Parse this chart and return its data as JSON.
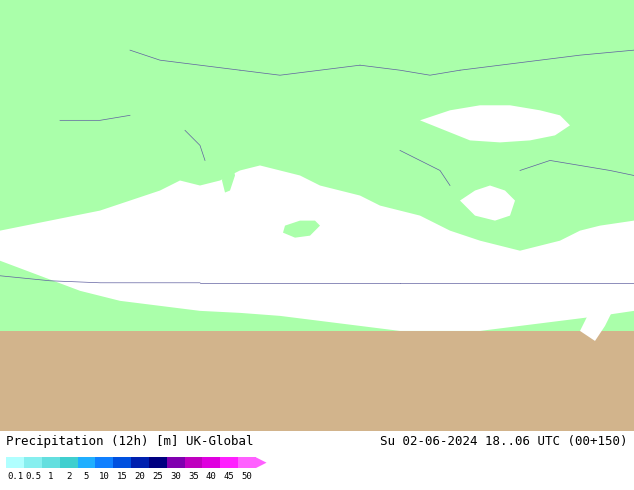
{
  "title_left": "Precipitation (12h) [m] UK-Global",
  "title_right": "Su 02-06-2024 18..06 UTC (00+150)",
  "colorbar_values": [
    0.1,
    0.5,
    1,
    2,
    5,
    10,
    15,
    20,
    25,
    30,
    35,
    40,
    45,
    50
  ],
  "colorbar_colors": [
    "#b0ffff",
    "#87efef",
    "#64dfdf",
    "#40cfcf",
    "#20afff",
    "#1080ff",
    "#0050df",
    "#0020af",
    "#000080",
    "#8000af",
    "#bf00bf",
    "#df00df",
    "#ff20ff",
    "#ff60ff"
  ],
  "land_color": "#aaffaa",
  "sea_color": "#ffffff",
  "desert_color": "#d2b48c",
  "border_color": "#6060a0",
  "background_color": "#ffffff",
  "label_fontsize": 9,
  "title_fontsize": 9
}
